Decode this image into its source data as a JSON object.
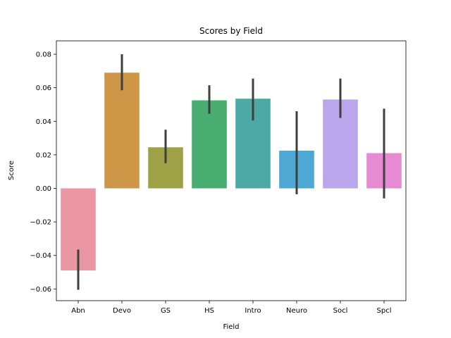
{
  "chart_data": {
    "type": "bar",
    "title": "Scores by Field",
    "xlabel": "Field",
    "ylabel": "Score",
    "ylim": [
      -0.067,
      0.088
    ],
    "yticks": [
      -0.06,
      -0.04,
      -0.02,
      0.0,
      0.02,
      0.04,
      0.06,
      0.08
    ],
    "ytick_labels": [
      "−0.06",
      "−0.04",
      "−0.02",
      "0.00",
      "0.02",
      "0.04",
      "0.06",
      "0.08"
    ],
    "grid": false,
    "categories": [
      "Abn",
      "Devo",
      "GS",
      "HS",
      "Intro",
      "Neuro",
      "Socl",
      "Spcl"
    ],
    "values": [
      -0.049,
      0.069,
      0.0245,
      0.0525,
      0.0535,
      0.0225,
      0.053,
      0.021
    ],
    "error_low": [
      -0.0605,
      0.0585,
      0.015,
      0.0445,
      0.0405,
      -0.0035,
      0.042,
      -0.006
    ],
    "error_high": [
      -0.0365,
      0.08,
      0.035,
      0.0615,
      0.0655,
      0.046,
      0.0655,
      0.0475
    ],
    "colors": [
      "#ea96a3",
      "#ce9748",
      "#9ea146",
      "#49ad72",
      "#4ca9a4",
      "#4da8d3",
      "#b9a6eb",
      "#e68ad4"
    ],
    "error_color": "#3f3f3f"
  }
}
